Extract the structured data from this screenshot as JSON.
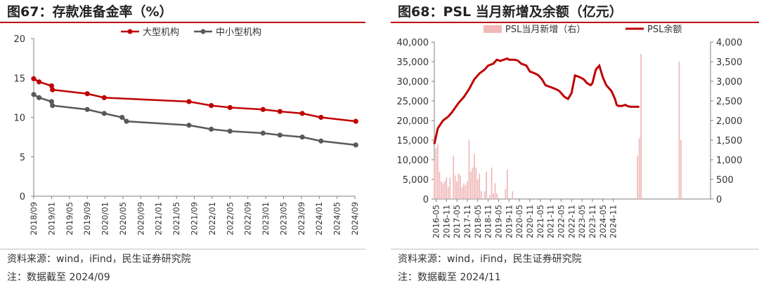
{
  "left": {
    "title": "图67：存款准备金率（%）",
    "source": "资料来源：wind，iFind，民生证券研究院",
    "note": "注：数据截至 2024/09",
    "chart_data": {
      "type": "line",
      "title": "存款准备金率（%）",
      "ylim": [
        0,
        20
      ],
      "yticks": [
        "0",
        "5",
        "10",
        "15",
        "20"
      ],
      "x_tick_labels": [
        "2018/09",
        "2019/01",
        "2019/05",
        "2019/09",
        "2020/01",
        "2020/05",
        "2020/09",
        "2021/01",
        "2021/05",
        "2021/09",
        "2022/01",
        "2022/05",
        "2022/09",
        "2023/01",
        "2023/05",
        "2023/09",
        "2024/01",
        "2024/05",
        "2024/09"
      ],
      "series": [
        {
          "name": "大型机构",
          "color": "#c00000",
          "points": [
            [
              0,
              14.9
            ],
            [
              0.3,
              14.5
            ],
            [
              1,
              14
            ],
            [
              1.05,
              13.5
            ],
            [
              3,
              13
            ],
            [
              3.95,
              12.5
            ],
            [
              8.7,
              12
            ],
            [
              9.95,
              11.5
            ],
            [
              11,
              11.25
            ],
            [
              12.85,
              11
            ],
            [
              13.8,
              10.75
            ],
            [
              15.05,
              10.5
            ],
            [
              16.1,
              10
            ],
            [
              18.05,
              9.5
            ]
          ]
        },
        {
          "name": "中小型机构",
          "color": "#595959",
          "points": [
            [
              0,
              12.9
            ],
            [
              0.3,
              12.5
            ],
            [
              1,
              12
            ],
            [
              1.05,
              11.5
            ],
            [
              3,
              11
            ],
            [
              3.95,
              10.5
            ],
            [
              4.95,
              10
            ],
            [
              5.2,
              9.5
            ],
            [
              8.7,
              9
            ],
            [
              9.95,
              8.5
            ],
            [
              11,
              8.25
            ],
            [
              12.85,
              8
            ],
            [
              13.8,
              7.75
            ],
            [
              15.05,
              7.5
            ],
            [
              16.1,
              7
            ],
            [
              18.05,
              6.5
            ]
          ]
        }
      ]
    }
  },
  "right": {
    "title": "图68：PSL 当月新增及余额（亿元）",
    "source": "资料来源：wind，iFind，民生证券研究院",
    "note": "注：数据截至 2024/11",
    "chart_data": {
      "type": "bar+line",
      "title": "PSL 当月新增及余额（亿元）",
      "ylim_left": [
        0,
        40000
      ],
      "ylim_right": [
        0,
        4000
      ],
      "yticks_left": [
        "0",
        "5,000",
        "10,000",
        "15,000",
        "20,000",
        "25,000",
        "30,000",
        "35,000",
        "40,000"
      ],
      "yticks_right": [
        "0",
        "500",
        "1,000",
        "1,500",
        "2,000",
        "2,500",
        "3,000",
        "3,500",
        "4,000"
      ],
      "x_tick_labels": [
        "2016-05",
        "2016-11",
        "2017-05",
        "2017-11",
        "2018-05",
        "2018-11",
        "2019-05",
        "2019-11",
        "2020-05",
        "2020-11",
        "2021-05",
        "2021-11",
        "2022-05",
        "2022-11",
        "2023-05",
        "2023-11",
        "2024-05",
        "2024-11"
      ],
      "bar_series": {
        "name": "PSL当月新增（右）",
        "color": "#f0b8b8",
        "values": [
          1000,
          1300,
          1400,
          700,
          450,
          400,
          450,
          550,
          300,
          550,
          0,
          1100,
          600,
          450,
          650,
          600,
          300,
          400,
          350,
          450,
          1500,
          700,
          800,
          1150,
          800,
          500,
          650,
          200,
          0,
          200,
          700,
          0,
          100,
          800,
          150,
          400,
          150,
          0,
          0,
          0,
          0,
          250,
          750,
          0,
          0,
          200,
          0,
          0,
          0,
          0,
          0,
          0,
          0,
          0,
          0,
          0,
          0,
          0,
          0,
          0,
          0,
          0,
          0,
          0,
          0,
          0,
          0,
          0,
          0,
          0,
          0,
          0,
          0,
          0,
          0,
          0,
          0,
          0,
          0,
          0,
          0,
          0,
          0,
          0,
          0,
          0,
          0,
          0,
          0,
          0,
          0,
          0,
          0,
          0,
          0,
          0,
          0,
          0,
          0,
          0,
          0,
          0,
          0,
          0,
          0,
          0,
          0,
          0,
          0,
          0,
          0,
          0,
          0,
          0,
          0,
          0,
          0,
          1100,
          1550,
          3700,
          0,
          0,
          0,
          0,
          0,
          0,
          0,
          0,
          0,
          0,
          0,
          0,
          0,
          0,
          0,
          0,
          0,
          0,
          0,
          0,
          0,
          3500,
          1500,
          0,
          0,
          0,
          0,
          0,
          0,
          0,
          0,
          0,
          0,
          0,
          0,
          0,
          0,
          0,
          0,
          0
        ]
      },
      "line_series": {
        "name": "PSL余额",
        "color": "#c00000",
        "points": [
          [
            0,
            14000
          ],
          [
            2,
            18000
          ],
          [
            5,
            20000
          ],
          [
            8,
            21000
          ],
          [
            10,
            22000
          ],
          [
            14,
            24500
          ],
          [
            17,
            26000
          ],
          [
            20,
            28000
          ],
          [
            23,
            30500
          ],
          [
            26,
            32000
          ],
          [
            29,
            33000
          ],
          [
            31,
            34000
          ],
          [
            34,
            34500
          ],
          [
            36,
            35500
          ],
          [
            38,
            35200
          ],
          [
            40,
            35500
          ],
          [
            42,
            35800
          ],
          [
            43,
            35500
          ],
          [
            46,
            35500
          ],
          [
            48,
            35300
          ],
          [
            50,
            34500
          ],
          [
            53,
            34000
          ],
          [
            55,
            32500
          ],
          [
            58,
            32000
          ],
          [
            60,
            31500
          ],
          [
            62,
            30500
          ],
          [
            64,
            29000
          ],
          [
            67,
            28500
          ],
          [
            70,
            28000
          ],
          [
            72,
            27500
          ],
          [
            75,
            26000
          ],
          [
            77,
            25500
          ],
          [
            79,
            27000
          ],
          [
            81,
            31500
          ],
          [
            84,
            31000
          ],
          [
            86,
            30500
          ],
          [
            88,
            29500
          ],
          [
            90,
            29000
          ],
          [
            91,
            29500
          ],
          [
            93,
            33000
          ],
          [
            95,
            34000
          ],
          [
            97,
            31000
          ],
          [
            99,
            29000
          ],
          [
            102,
            27500
          ],
          [
            104,
            25500
          ],
          [
            105,
            24000
          ],
          [
            106,
            23700
          ],
          [
            108,
            23700
          ],
          [
            110,
            24000
          ],
          [
            111,
            23700
          ],
          [
            113,
            23500
          ],
          [
            115,
            23500
          ],
          [
            116,
            23500
          ],
          [
            117,
            23500
          ],
          [
            118,
            23500
          ]
        ]
      }
    }
  }
}
